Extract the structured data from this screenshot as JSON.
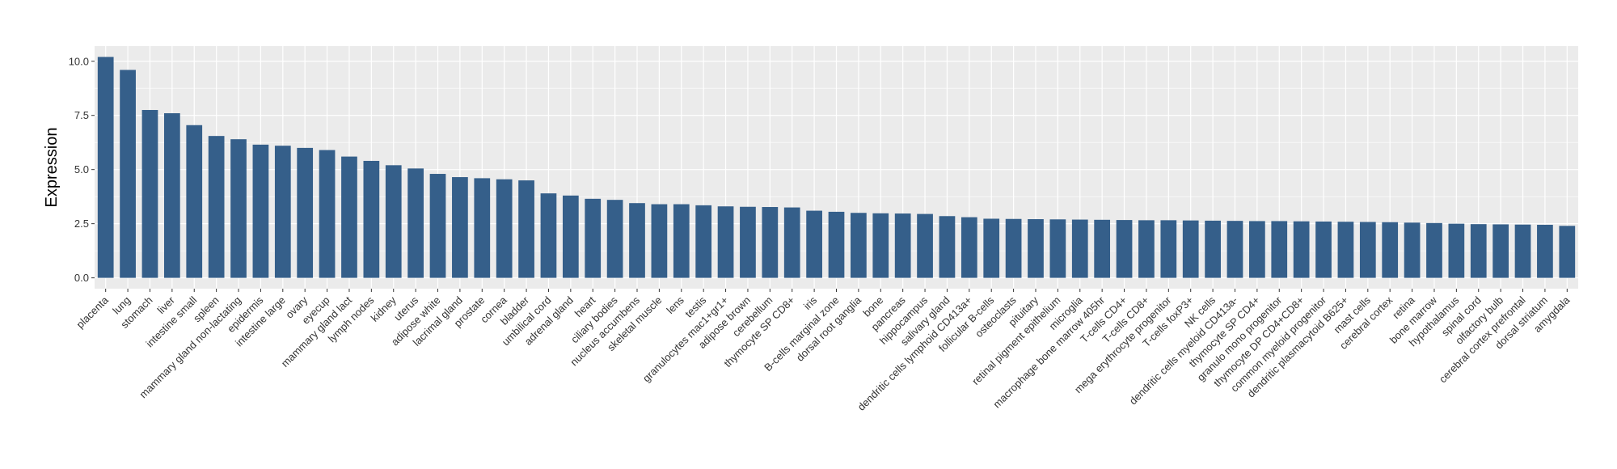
{
  "chart_data": {
    "type": "bar",
    "title": "",
    "xlabel": "",
    "ylabel": "Expression",
    "ylim": [
      -0.5,
      10.7
    ],
    "yticks": [
      0.0,
      2.5,
      5.0,
      7.5,
      10.0
    ],
    "ytick_labels": [
      "0.0",
      "2.5",
      "5.0",
      "7.5",
      "10.0"
    ],
    "grid": true,
    "legend": "none",
    "bar_color": "#355f8a",
    "panel_color": "#ebebeb",
    "grid_color": "#ffffff",
    "categories": [
      "placenta",
      "lung",
      "stomach",
      "liver",
      "intestine small",
      "spleen",
      "mammary gland non-lactating",
      "epidermis",
      "intestine large",
      "ovary",
      "eyecup",
      "mammary gland  lact",
      "lymph nodes",
      "kidney",
      "uterus",
      "adipose white",
      "lacrimal gland",
      "prostate",
      "cornea",
      "bladder",
      "umbilical cord",
      "adrenal gland",
      "heart",
      "ciliary bodies",
      "nucleus accumbens",
      "skeletal muscle",
      "lens",
      "testis",
      "granulocytes mac1+gr1+",
      "adipose brown",
      "cerebellum",
      "thymocyte SP CD8+",
      "iris",
      "B-cells marginal zone",
      "dorsal root ganglia",
      "bone",
      "pancreas",
      "hippocampus",
      "salivary gland",
      "dendritic cells lymphoid CD413a+",
      "follicular B-cells",
      "osteoclasts",
      "pituitary",
      "retinal pigment epithelium",
      "microglia",
      "macrophage bone marrow 405hr",
      "T-cells CD4+",
      "T-cells CD8+",
      "mega erythrocyte progenitor",
      "T-cells foxP3+",
      "NK cells",
      "dendritic cells myeloid CD413a-",
      "thymocyte SP CD4+",
      "granulo mono progenitor",
      "thymocyte DP CD4+CD8+",
      "common myeloid progenitor",
      "dendritic plasmacytoid B625+",
      "mast cells",
      "cerebral cortex",
      "retina",
      "bone marrow",
      "hypothalamus",
      "spinal cord",
      "olfactory bulb",
      "cerebral cortex prefrontal",
      "dorsal striatum",
      "amygdala"
    ],
    "values": [
      10.2,
      9.6,
      7.75,
      7.6,
      7.05,
      6.55,
      6.4,
      6.15,
      6.1,
      6.0,
      5.9,
      5.6,
      5.4,
      5.2,
      5.05,
      4.8,
      4.65,
      4.6,
      4.55,
      4.5,
      3.9,
      3.8,
      3.65,
      3.6,
      3.45,
      3.4,
      3.4,
      3.35,
      3.3,
      3.28,
      3.27,
      3.25,
      3.1,
      3.05,
      3.0,
      2.98,
      2.97,
      2.95,
      2.85,
      2.8,
      2.73,
      2.72,
      2.71,
      2.7,
      2.69,
      2.68,
      2.67,
      2.66,
      2.66,
      2.65,
      2.64,
      2.63,
      2.62,
      2.62,
      2.61,
      2.6,
      2.59,
      2.58,
      2.57,
      2.55,
      2.53,
      2.5,
      2.48,
      2.47,
      2.46,
      2.45,
      2.4
    ]
  }
}
